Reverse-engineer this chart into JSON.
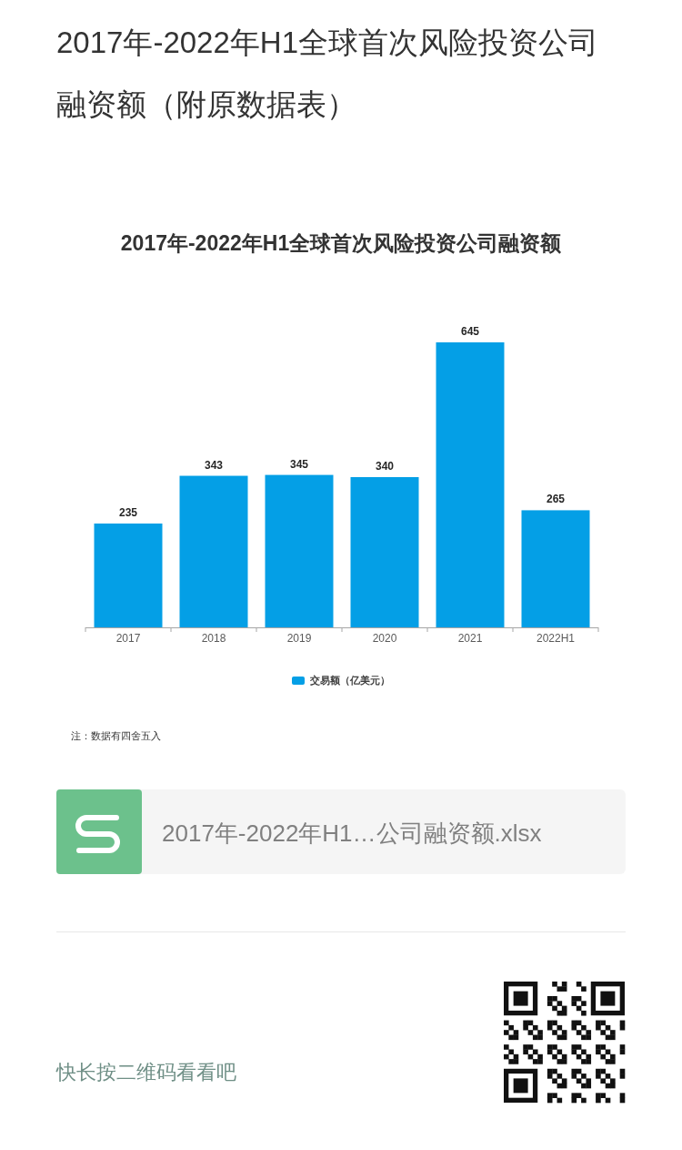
{
  "chart_data": {
    "type": "bar",
    "title": "2017年-2022年H1全球首次风险投资公司融资额（附原数据表）",
    "subtitle": "2017年-2022年H1全球首次风险投资公司融资额",
    "categories": [
      "2017",
      "2018",
      "2019",
      "2020",
      "2021",
      "2022H1"
    ],
    "series": [
      {
        "name": "交易额（亿美元）",
        "color": "#049fe6",
        "values": [
          235,
          343,
          345,
          340,
          645,
          265
        ]
      }
    ],
    "data_labels": true,
    "legend": "bottom",
    "annotations": [
      "注：数据有四舍五入",
      "2017年-2022年H1…公司融资额.xlsx",
      "快长按二维码看看吧"
    ]
  }
}
